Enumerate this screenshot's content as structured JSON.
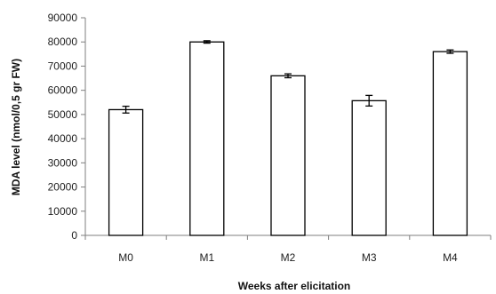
{
  "chart_data": {
    "type": "bar",
    "categories": [
      "M0",
      "M1",
      "M2",
      "M3",
      "M4"
    ],
    "values": [
      52000,
      80000,
      66000,
      55700,
      76000
    ],
    "errors": [
      1400,
      500,
      800,
      2200,
      700
    ],
    "xlabel": "Weeks after elicitation",
    "ylabel": "MDA level (nmol/0,5 gr FW)",
    "ylim": [
      0,
      90000
    ],
    "yticks": [
      0,
      10000,
      20000,
      30000,
      40000,
      50000,
      60000,
      70000,
      80000,
      90000
    ],
    "grid": false,
    "legend": "none",
    "bar_fill": "#ffffff",
    "bar_stroke": "#000000"
  }
}
